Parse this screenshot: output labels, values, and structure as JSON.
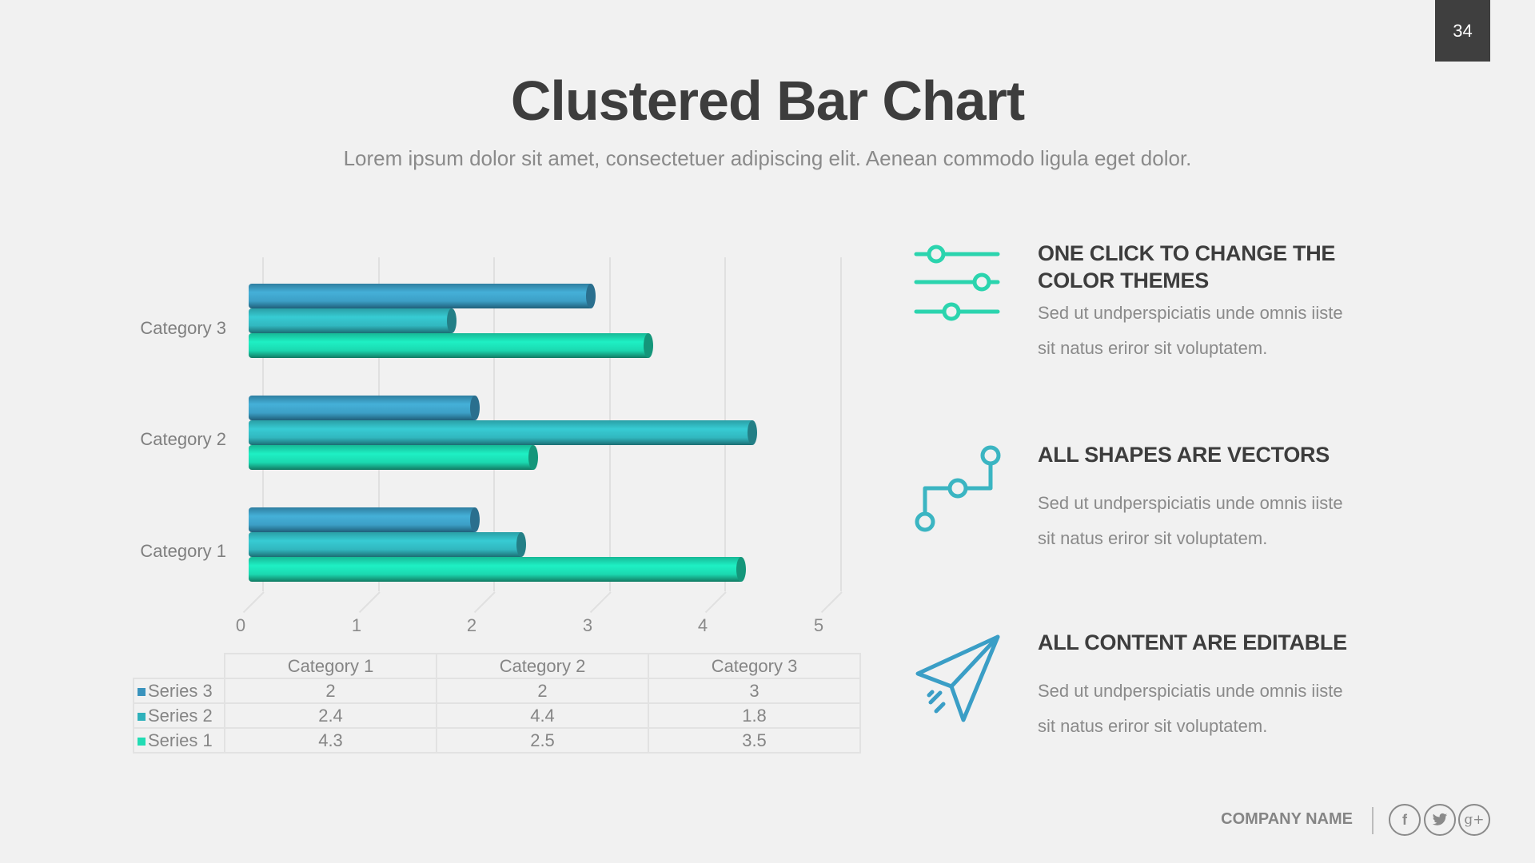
{
  "page_number": "34",
  "title": "Clustered Bar Chart",
  "subtitle": "Lorem ipsum dolor sit amet, consectetuer adipiscing elit. Aenean commodo ligula eget dolor.",
  "colors": {
    "series1": "#1ef0c4",
    "series2": "#37cbd3",
    "series3": "#45b0d8",
    "icon_sliders": "#2bd4ae",
    "icon_vectors": "#3bb5c2",
    "icon_plane": "#3a9ec6",
    "title": "#3d3d3d",
    "body_text": "#8a8a8a",
    "background": "#f1f1f1",
    "page_badge": "#3f3f3f"
  },
  "chart_data": {
    "type": "bar",
    "orientation": "horizontal",
    "style": "3D clustered cylinder",
    "title": "",
    "xlabel": "",
    "ylabel": "",
    "categories": [
      "Category 1",
      "Category 2",
      "Category 3"
    ],
    "series": [
      {
        "name": "Series 1",
        "values": [
          4.3,
          2.5,
          3.5
        ],
        "color": "#1ef0c4"
      },
      {
        "name": "Series 2",
        "values": [
          2.4,
          4.4,
          1.8
        ],
        "color": "#37cbd3"
      },
      {
        "name": "Series 3",
        "values": [
          2,
          2,
          3
        ],
        "color": "#45b0d8"
      }
    ],
    "xlim": [
      0,
      5
    ],
    "x_ticks": [
      "0",
      "1",
      "2",
      "3",
      "4",
      "5"
    ],
    "grid": true,
    "legend": "data table below chart",
    "data_table": {
      "headers": [
        "Category 1",
        "Category 2",
        "Category 3"
      ],
      "rows": [
        {
          "label": "Series 3",
          "values": [
            "2",
            "2",
            "3"
          ]
        },
        {
          "label": "Series 2",
          "values": [
            "2.4",
            "4.4",
            "1.8"
          ]
        },
        {
          "label": "Series 1",
          "values": [
            "4.3",
            "2.5",
            "3.5"
          ]
        }
      ]
    }
  },
  "features": [
    {
      "icon": "sliders-icon",
      "heading_line1": "ONE CLICK TO CHANGE THE",
      "heading_line2": "COLOR THEMES",
      "body_line1": "Sed ut undperspiciatis unde omnis iiste",
      "body_line2": "sit natus eriror sit voluptatem."
    },
    {
      "icon": "vector-nodes-icon",
      "heading_line1": "ALL SHAPES ARE VECTORS",
      "body_line1": "Sed ut undperspiciatis unde omnis iiste",
      "body_line2": "sit natus eriror sit voluptatem."
    },
    {
      "icon": "paper-plane-icon",
      "heading_line1": "ALL CONTENT ARE EDITABLE",
      "body_line1": "Sed ut undperspiciatis unde omnis iiste",
      "body_line2": "sit natus eriror sit voluptatem."
    }
  ],
  "footer": {
    "company_name": "COMPANY NAME",
    "social": [
      {
        "icon": "facebook-icon",
        "glyph": "f"
      },
      {
        "icon": "twitter-icon",
        "glyph": "t"
      },
      {
        "icon": "google-plus-icon",
        "glyph": "g+"
      }
    ]
  }
}
